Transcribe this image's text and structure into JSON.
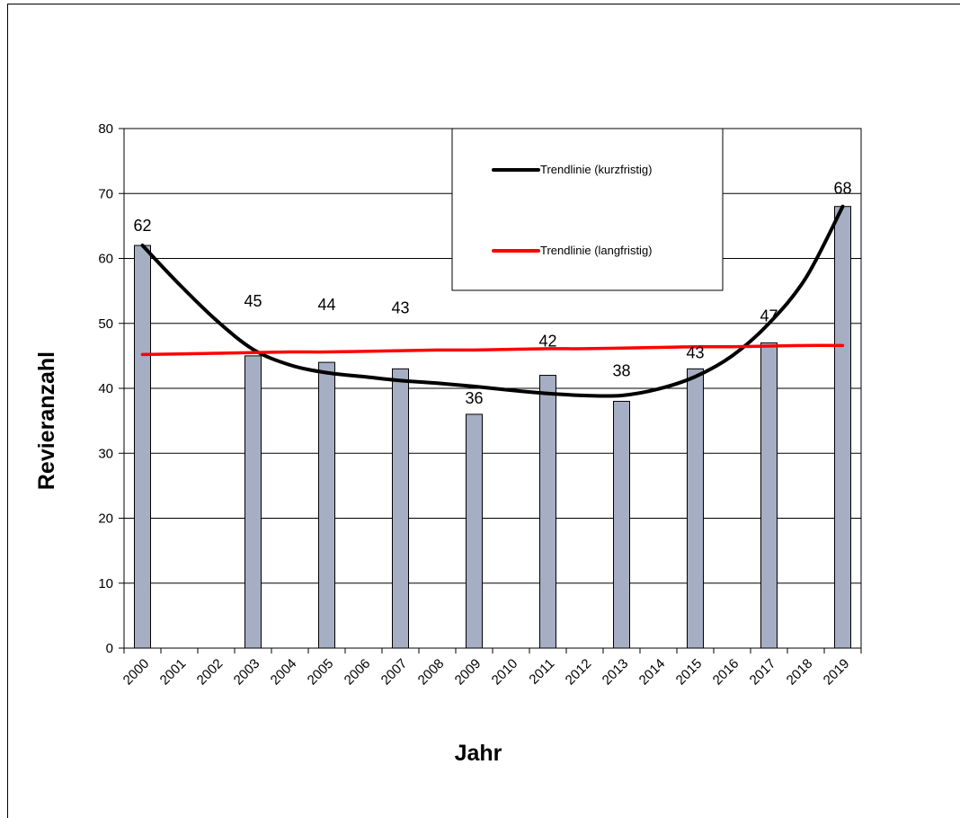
{
  "chart_data": {
    "type": "bar",
    "title": "",
    "xlabel": "Jahr",
    "ylabel": "Revieranzahl",
    "ylim": [
      0,
      80
    ],
    "yticks": [
      0,
      10,
      20,
      30,
      40,
      50,
      60,
      70,
      80
    ],
    "grid": true,
    "legend_position": "top-right",
    "categories": [
      "2000",
      "2001",
      "2002",
      "2003",
      "2004",
      "2005",
      "2006",
      "2007",
      "2008",
      "2009",
      "2010",
      "2011",
      "2012",
      "2013",
      "2014",
      "2015",
      "2016",
      "2017",
      "2018",
      "2019"
    ],
    "series": [
      {
        "type": "bar",
        "values": [
          62,
          null,
          null,
          45,
          null,
          44,
          null,
          43,
          null,
          36,
          null,
          42,
          null,
          38,
          null,
          43,
          null,
          47,
          null,
          68
        ],
        "color": "#a6aec4"
      },
      {
        "type": "line",
        "name": "Trendlinie (kurzfristig)",
        "color": "#000000",
        "values": [
          62,
          56,
          50.5,
          46,
          43.6,
          42.4,
          41.8,
          41.2,
          40.8,
          40.3,
          39.7,
          39.2,
          38.9,
          38.9,
          39.9,
          41.8,
          45,
          50,
          57,
          68
        ]
      },
      {
        "type": "line",
        "name": "Trendlinie (langfristig)",
        "color": "#ff0000",
        "values": [
          45.2,
          45.3,
          45.4,
          45.5,
          45.6,
          45.6,
          45.7,
          45.8,
          45.9,
          45.9,
          46.0,
          46.1,
          46.1,
          46.2,
          46.3,
          46.4,
          46.4,
          46.5,
          46.6,
          46.6
        ]
      }
    ]
  }
}
